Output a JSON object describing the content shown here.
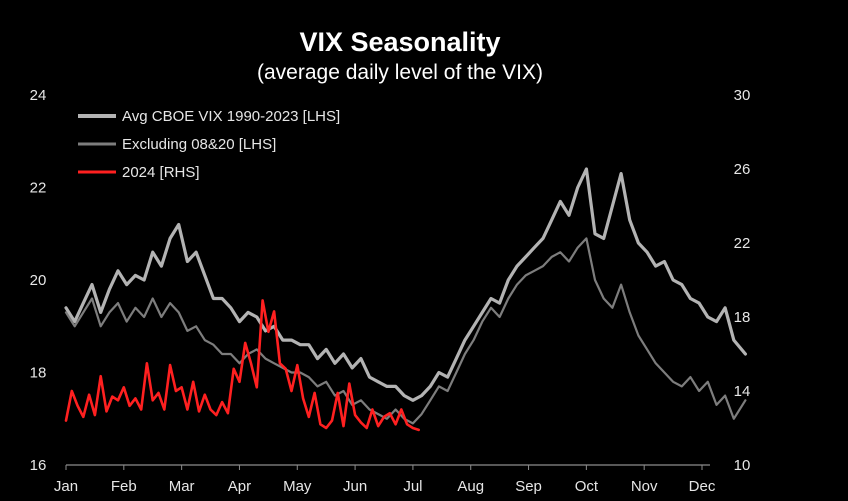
{
  "chart_data": {
    "type": "line",
    "title": "VIX Seasonality",
    "subtitle": "(average daily level of the VIX)",
    "x_categories": [
      "Jan",
      "Feb",
      "Mar",
      "Apr",
      "May",
      "Jun",
      "Jul",
      "Aug",
      "Sep",
      "Oct",
      "Nov",
      "Dec"
    ],
    "left_axis": {
      "ticks": [
        "16",
        "18",
        "20",
        "22",
        "24"
      ],
      "ylim": [
        16,
        24
      ]
    },
    "right_axis": {
      "ticks": [
        "10",
        "14",
        "18",
        "22",
        "26",
        "30"
      ],
      "ylim": [
        10,
        30
      ]
    },
    "grid": false,
    "legend_position": "top-left",
    "series": [
      {
        "name": "Avg CBOE VIX 1990-2023 [LHS]",
        "axis": "left",
        "color": "#b3b3b3",
        "x": [
          1,
          1.15,
          1.3,
          1.45,
          1.6,
          1.75,
          1.9,
          2.05,
          2.2,
          2.35,
          2.5,
          2.65,
          2.8,
          2.95,
          3.1,
          3.25,
          3.4,
          3.55,
          3.7,
          3.85,
          4.0,
          4.15,
          4.3,
          4.45,
          4.6,
          4.75,
          4.9,
          5.05,
          5.2,
          5.35,
          5.5,
          5.65,
          5.8,
          5.95,
          6.1,
          6.25,
          6.4,
          6.55,
          6.7,
          6.85,
          7.0,
          7.15,
          7.3,
          7.45,
          7.6,
          7.75,
          7.9,
          8.05,
          8.2,
          8.35,
          8.5,
          8.65,
          8.8,
          8.95,
          9.1,
          9.25,
          9.4,
          9.55,
          9.7,
          9.85,
          10.0,
          10.15,
          10.3,
          10.45,
          10.6,
          10.75,
          10.9,
          11.05,
          11.2,
          11.35,
          11.5,
          11.65,
          11.8,
          11.95,
          12.1,
          12.25,
          12.4,
          12.55,
          12.75
        ],
        "values": [
          19.4,
          19.1,
          19.5,
          19.9,
          19.3,
          19.8,
          20.2,
          19.9,
          20.1,
          20.0,
          20.6,
          20.3,
          20.9,
          21.2,
          20.4,
          20.6,
          20.1,
          19.6,
          19.6,
          19.4,
          19.1,
          19.3,
          19.2,
          18.9,
          19.0,
          18.7,
          18.7,
          18.6,
          18.6,
          18.3,
          18.5,
          18.2,
          18.4,
          18.1,
          18.3,
          17.9,
          17.8,
          17.7,
          17.7,
          17.5,
          17.4,
          17.5,
          17.7,
          18.0,
          17.9,
          18.3,
          18.7,
          19.0,
          19.3,
          19.6,
          19.5,
          20.0,
          20.3,
          20.5,
          20.7,
          20.9,
          21.3,
          21.7,
          21.4,
          22.0,
          22.4,
          21.0,
          20.9,
          21.6,
          22.3,
          21.3,
          20.8,
          20.6,
          20.3,
          20.4,
          20.0,
          19.9,
          19.6,
          19.5,
          19.2,
          19.1,
          19.4,
          18.7,
          18.4
        ]
      },
      {
        "name": "Excluding 08&20 [LHS]",
        "axis": "left",
        "color": "#7d7d7d",
        "x": [
          1,
          1.15,
          1.3,
          1.45,
          1.6,
          1.75,
          1.9,
          2.05,
          2.2,
          2.35,
          2.5,
          2.65,
          2.8,
          2.95,
          3.1,
          3.25,
          3.4,
          3.55,
          3.7,
          3.85,
          4.0,
          4.15,
          4.3,
          4.45,
          4.6,
          4.75,
          4.9,
          5.05,
          5.2,
          5.35,
          5.5,
          5.65,
          5.8,
          5.95,
          6.1,
          6.25,
          6.4,
          6.55,
          6.7,
          6.85,
          7.0,
          7.15,
          7.3,
          7.45,
          7.6,
          7.75,
          7.9,
          8.05,
          8.2,
          8.35,
          8.5,
          8.65,
          8.8,
          8.95,
          9.1,
          9.25,
          9.4,
          9.55,
          9.7,
          9.85,
          10.0,
          10.15,
          10.3,
          10.45,
          10.6,
          10.75,
          10.9,
          11.05,
          11.2,
          11.35,
          11.5,
          11.65,
          11.8,
          11.95,
          12.1,
          12.25,
          12.4,
          12.55,
          12.75
        ],
        "values": [
          19.3,
          19.0,
          19.3,
          19.6,
          19.0,
          19.3,
          19.5,
          19.1,
          19.4,
          19.2,
          19.6,
          19.2,
          19.5,
          19.3,
          18.9,
          19.0,
          18.7,
          18.6,
          18.4,
          18.4,
          18.2,
          18.4,
          18.5,
          18.3,
          18.2,
          18.1,
          18.0,
          18.0,
          17.9,
          17.7,
          17.8,
          17.5,
          17.6,
          17.3,
          17.4,
          17.2,
          17.1,
          17.0,
          17.2,
          17.0,
          16.9,
          17.1,
          17.4,
          17.7,
          17.6,
          18.0,
          18.4,
          18.7,
          19.1,
          19.4,
          19.2,
          19.6,
          19.9,
          20.1,
          20.2,
          20.3,
          20.5,
          20.6,
          20.4,
          20.7,
          20.9,
          20.0,
          19.6,
          19.4,
          19.9,
          19.3,
          18.8,
          18.5,
          18.2,
          18.0,
          17.8,
          17.7,
          17.9,
          17.6,
          17.8,
          17.3,
          17.5,
          17.0,
          17.4
        ]
      },
      {
        "name": "2024 [RHS]",
        "axis": "right",
        "color": "#ff2020",
        "x": [
          1,
          1.1,
          1.2,
          1.3,
          1.4,
          1.5,
          1.6,
          1.7,
          1.8,
          1.9,
          2.0,
          2.1,
          2.2,
          2.3,
          2.4,
          2.5,
          2.6,
          2.7,
          2.8,
          2.9,
          3.0,
          3.1,
          3.2,
          3.3,
          3.4,
          3.5,
          3.6,
          3.7,
          3.8,
          3.9,
          4.0,
          4.1,
          4.2,
          4.3,
          4.4,
          4.5,
          4.6,
          4.7,
          4.8,
          4.9,
          5.0,
          5.1,
          5.2,
          5.3,
          5.4,
          5.5,
          5.6,
          5.7,
          5.8,
          5.9,
          6.0,
          6.1,
          6.2,
          6.3,
          6.4,
          6.5,
          6.6,
          6.7,
          6.8,
          6.9,
          7.0,
          7.1
        ],
        "values": [
          12.4,
          14.0,
          13.2,
          12.6,
          13.8,
          12.7,
          14.8,
          12.9,
          13.7,
          13.5,
          14.2,
          13.2,
          13.6,
          13.0,
          15.5,
          13.5,
          13.9,
          13.0,
          15.4,
          14.0,
          14.2,
          13.0,
          14.5,
          12.9,
          13.8,
          13.0,
          12.7,
          13.4,
          12.8,
          15.2,
          14.5,
          16.6,
          15.5,
          14.2,
          18.9,
          17.2,
          18.3,
          15.5,
          15.2,
          14.0,
          15.4,
          13.6,
          12.6,
          13.9,
          12.2,
          12.0,
          12.4,
          13.9,
          12.1,
          14.4,
          12.7,
          12.3,
          12.0,
          13.0,
          12.1,
          12.6,
          12.8,
          12.2,
          13.0,
          12.2,
          12.0,
          11.9
        ]
      }
    ]
  }
}
